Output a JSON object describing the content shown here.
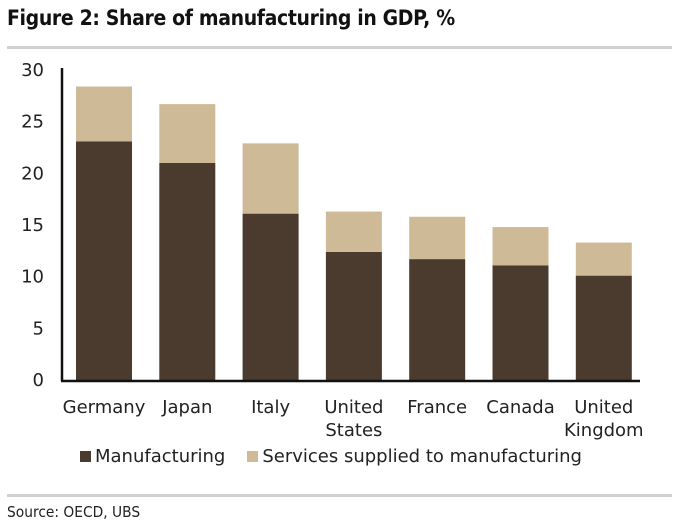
{
  "title": "Figure 2: Share of manufacturing in GDP, %",
  "source": "Source:  OECD, UBS",
  "colors": {
    "manufacturing": "#4b3b2e",
    "services": "#cfba98",
    "axis": "#111111",
    "rule": "#d0d0d0"
  },
  "chart_data": {
    "type": "bar",
    "stacked": true,
    "title": "Figure 2: Share of manufacturing in GDP, %",
    "xlabel": "",
    "ylabel": "",
    "ylim": [
      0,
      30
    ],
    "yticks": [
      0,
      5,
      10,
      15,
      20,
      25,
      30
    ],
    "grid": false,
    "legend_position": "bottom",
    "categories": [
      "Germany",
      "Japan",
      "Italy",
      "United States",
      "France",
      "Canada",
      "United Kingdom"
    ],
    "category_lines": [
      [
        "Germany"
      ],
      [
        "Japan"
      ],
      [
        "Italy"
      ],
      [
        "United",
        "States"
      ],
      [
        "France"
      ],
      [
        "Canada"
      ],
      [
        "United",
        "Kingdom"
      ]
    ],
    "series": [
      {
        "name": "Manufacturing",
        "values": [
          23.1,
          21.0,
          16.1,
          12.4,
          11.7,
          11.1,
          10.1
        ]
      },
      {
        "name": "Services supplied to manufacturing",
        "values": [
          5.3,
          5.7,
          6.8,
          3.9,
          4.1,
          3.7,
          3.2
        ]
      }
    ]
  }
}
